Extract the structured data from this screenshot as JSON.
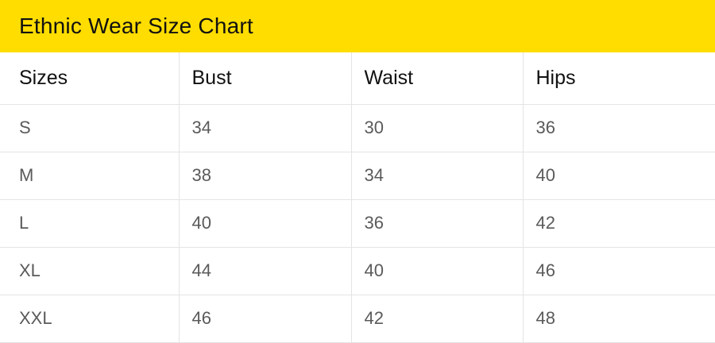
{
  "title": "Ethnic Wear Size Chart",
  "colors": {
    "header_background": "#FFDD00",
    "grid_line": "#e4e4e4",
    "heading_text": "#111111",
    "cell_text": "#5a5a5a"
  },
  "table": {
    "columns": [
      "Sizes",
      "Bust",
      "Waist",
      "Hips"
    ],
    "rows": [
      [
        "S",
        "34",
        "30",
        "36"
      ],
      [
        "M",
        "38",
        "34",
        "40"
      ],
      [
        "L",
        "40",
        "36",
        "42"
      ],
      [
        "XL",
        "44",
        "40",
        "46"
      ],
      [
        "XXL",
        "46",
        "42",
        "48"
      ]
    ]
  }
}
